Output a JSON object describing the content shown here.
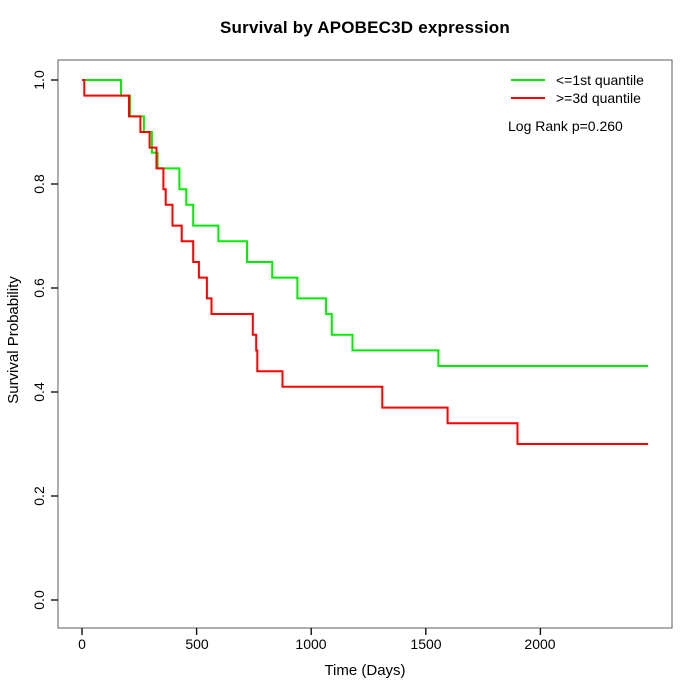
{
  "title": "Survival by APOBEC3D expression",
  "axes": {
    "x": {
      "label": "Time (Days)",
      "ticks": [
        "0",
        "500",
        "1000",
        "1500",
        "2000"
      ]
    },
    "y": {
      "label": "Survival Probability",
      "ticks": [
        "0.0",
        "0.2",
        "0.4",
        "0.6",
        "0.8",
        "1.0"
      ]
    }
  },
  "legend": {
    "entries": [
      {
        "label": "<=1st quantile",
        "color": "#00ee00"
      },
      {
        "label": ">=3d quantile",
        "color": "#ff0000"
      }
    ],
    "stat_label": "Log Rank p=0.260"
  },
  "chart_data": {
    "type": "line",
    "subtype": "kaplan-meier-step",
    "title": "Survival by APOBEC3D expression",
    "xlabel": "Time (Days)",
    "ylabel": "Survival Probability",
    "x_ticks": [
      0,
      500,
      1000,
      1500,
      2000
    ],
    "y_ticks": [
      0.0,
      0.2,
      0.4,
      0.6,
      0.8,
      1.0
    ],
    "xlim": [
      -105,
      2575
    ],
    "ylim": [
      0,
      1
    ],
    "grid": false,
    "legend_position": "top-right",
    "annotation": "Log Rank p=0.260",
    "frame_color": "#777777",
    "tick_color": "#111111",
    "line_width": 2,
    "series": [
      {
        "name": "<=1st quantile",
        "color": "#00ee00",
        "end_time": 2470,
        "points": [
          [
            0,
            1.0
          ],
          [
            170,
            0.97
          ],
          [
            210,
            0.93
          ],
          [
            270,
            0.9
          ],
          [
            305,
            0.86
          ],
          [
            330,
            0.83
          ],
          [
            425,
            0.79
          ],
          [
            455,
            0.76
          ],
          [
            485,
            0.72
          ],
          [
            595,
            0.69
          ],
          [
            720,
            0.65
          ],
          [
            830,
            0.62
          ],
          [
            940,
            0.58
          ],
          [
            1065,
            0.55
          ],
          [
            1090,
            0.51
          ],
          [
            1180,
            0.48
          ],
          [
            1555,
            0.45
          ]
        ]
      },
      {
        "name": ">=3d quantile",
        "color": "#ff0000",
        "end_time": 2470,
        "points": [
          [
            0,
            1.0
          ],
          [
            10,
            0.97
          ],
          [
            205,
            0.93
          ],
          [
            255,
            0.9
          ],
          [
            295,
            0.87
          ],
          [
            325,
            0.83
          ],
          [
            355,
            0.79
          ],
          [
            365,
            0.76
          ],
          [
            395,
            0.72
          ],
          [
            435,
            0.69
          ],
          [
            485,
            0.65
          ],
          [
            510,
            0.62
          ],
          [
            545,
            0.58
          ],
          [
            565,
            0.55
          ],
          [
            745,
            0.51
          ],
          [
            760,
            0.48
          ],
          [
            765,
            0.44
          ],
          [
            875,
            0.41
          ],
          [
            1310,
            0.37
          ],
          [
            1595,
            0.34
          ],
          [
            1900,
            0.3
          ]
        ]
      }
    ]
  }
}
